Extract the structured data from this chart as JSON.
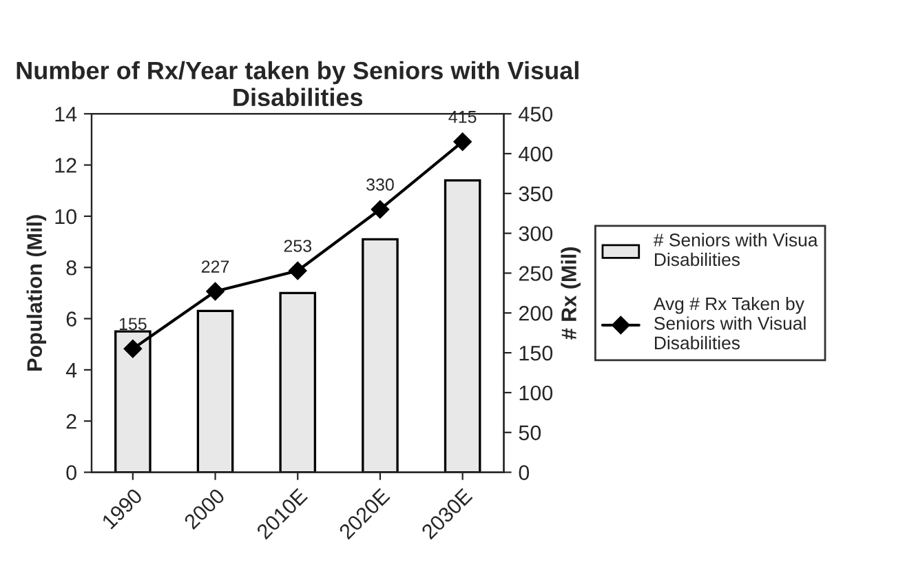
{
  "chart_data": {
    "type": "bar",
    "title": "Number of Rx/Year taken by Seniors with Visual Disabilities",
    "categories": [
      "1990",
      "2000",
      "2010E",
      "2020E",
      "2030E"
    ],
    "series": [
      {
        "name": "# Seniors with Visua\nDisabilities",
        "color": "#e8e8e8",
        "values": [
          5.5,
          6.3,
          7.0,
          9.1,
          11.4
        ]
      },
      {
        "name": "Avg # Rx Taken by\nSeniors with Visual\nDisabilities",
        "type": "line",
        "axis": "y2",
        "color": "#000000",
        "marker": "diamond",
        "values": [
          155,
          227,
          253,
          330,
          415
        ],
        "value_labels": [
          "155",
          "227",
          "253",
          "330",
          "415"
        ]
      }
    ],
    "ylabel": "Population (Mil)",
    "y2label": "# Rx (Mil)",
    "ylim": [
      0,
      14
    ],
    "yticks": [
      0,
      2,
      4,
      6,
      8,
      10,
      12,
      14
    ],
    "y2lim": [
      0,
      450
    ],
    "y2ticks": [
      0,
      50,
      100,
      150,
      200,
      250,
      300,
      350,
      400,
      450
    ],
    "grid": false,
    "legend": "right"
  }
}
